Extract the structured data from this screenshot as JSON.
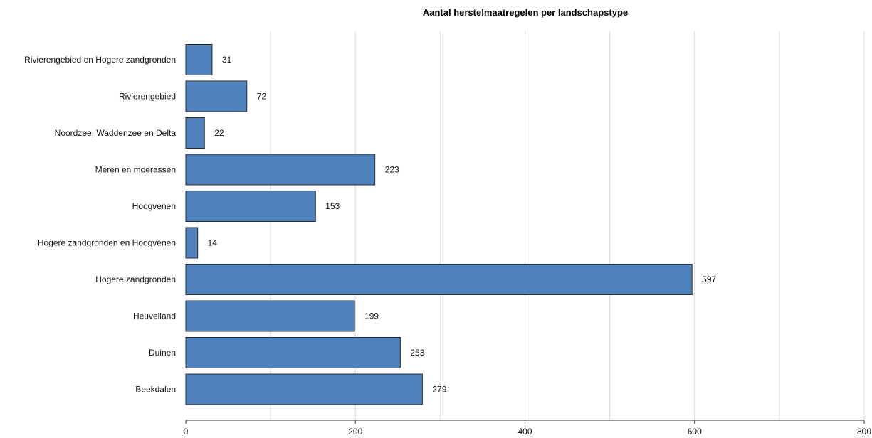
{
  "chart_data": {
    "type": "bar",
    "orientation": "horizontal",
    "title": "Aantal herstelmaatregelen per landschapstype",
    "xlabel": "",
    "ylabel": "",
    "xlim": [
      0,
      800
    ],
    "x_ticks": [
      0,
      200,
      400,
      600,
      800
    ],
    "grid": true,
    "bar_color": "#4f81bd",
    "categories": [
      "Rivierengebied en Hogere zandgronden",
      "Rivierengebied",
      "Noordzee, Waddenzee en Delta",
      "Meren en moerassen",
      "Hoogvenen",
      "Hogere zandgronden en Hoogvenen",
      "Hogere zandgronden",
      "Heuvelland",
      "Duinen",
      "Beekdalen"
    ],
    "values": [
      31,
      72,
      22,
      223,
      153,
      14,
      597,
      199,
      253,
      279
    ]
  }
}
